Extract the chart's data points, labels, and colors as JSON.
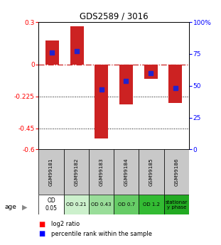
{
  "title": "GDS2589 / 3016",
  "samples": [
    "GSM99181",
    "GSM99182",
    "GSM99183",
    "GSM99184",
    "GSM99185",
    "GSM99186"
  ],
  "log2_ratio": [
    0.17,
    0.27,
    -0.52,
    -0.28,
    -0.1,
    -0.27
  ],
  "percentile_rank": [
    76,
    77,
    47,
    54,
    60,
    48
  ],
  "ylim_left": [
    -0.6,
    0.3
  ],
  "yticks_left": [
    0.3,
    0,
    -0.225,
    -0.45,
    -0.6
  ],
  "ytick_labels_left": [
    "0.3",
    "0",
    "-0.225",
    "-0.45",
    "-0.6"
  ],
  "yticks_right_pct": [
    100,
    75,
    50,
    25,
    0
  ],
  "ytick_labels_right": [
    "100%",
    "75",
    "50",
    "25",
    "0"
  ],
  "age_labels": [
    "OD\n0.05",
    "OD 0.21",
    "OD 0.43",
    "OD 0.7",
    "OD 1.2",
    "stationar\ny phase"
  ],
  "age_colors": [
    "#ffffff",
    "#ccf0cc",
    "#99dd99",
    "#66cc66",
    "#33bb33",
    "#22aa22"
  ],
  "sample_cell_color": "#c8c8c8",
  "bar_color_red": "#cc2222",
  "bar_color_blue": "#2222cc",
  "zero_line_color": "#cc2222",
  "dotted_line_color": "#000000",
  "bg_color": "#ffffff"
}
